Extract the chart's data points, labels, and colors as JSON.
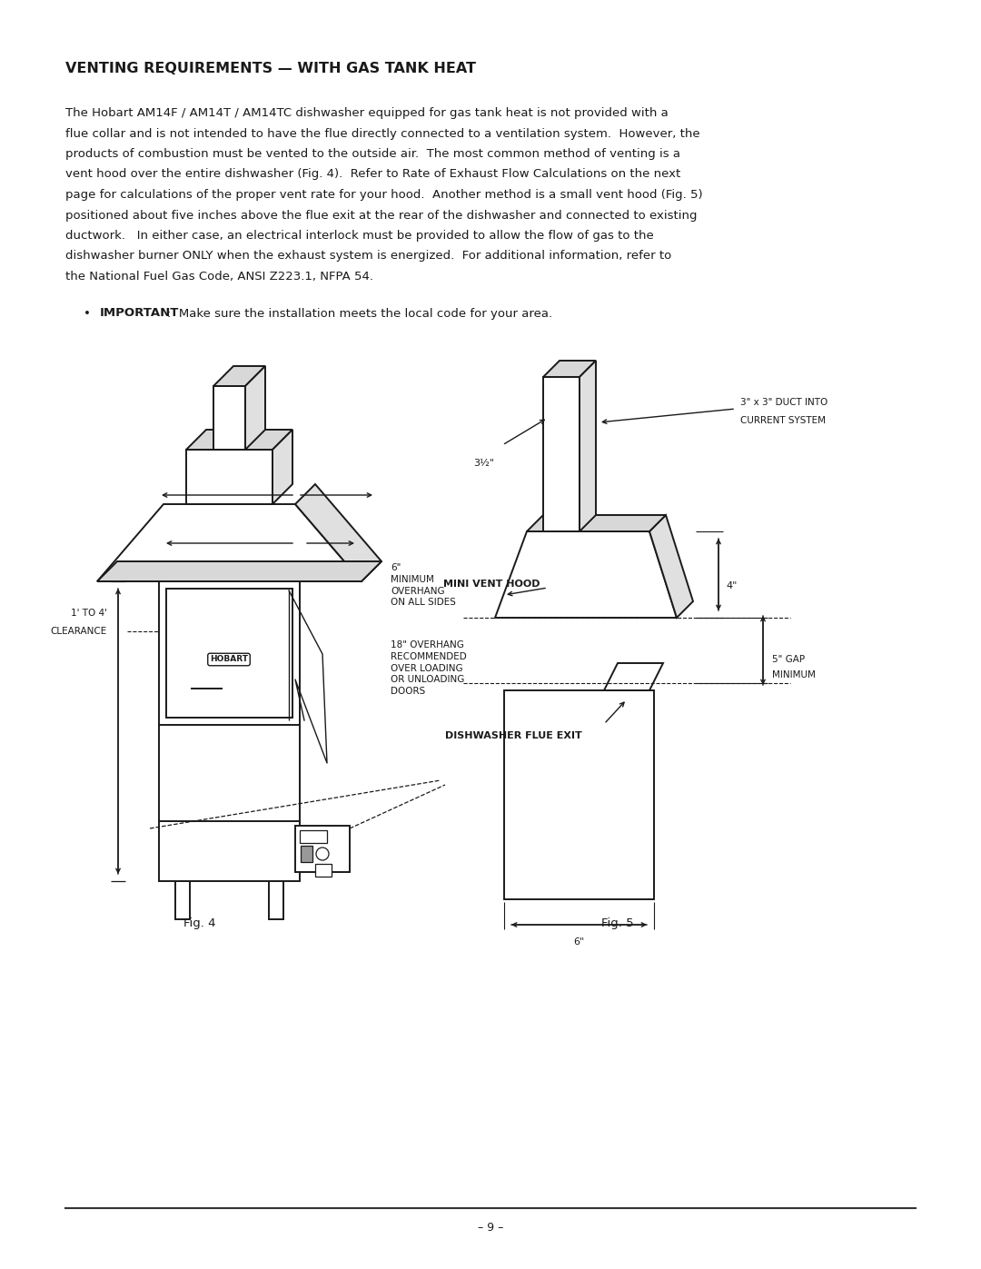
{
  "bg_color": "#ffffff",
  "text_color": "#1a1a1a",
  "title": "VENTING REQUIREMENTS — WITH GAS TANK HEAT",
  "body_line1": "The Hobart AM14F / AM14T / AM14TC dishwasher equipped for gas tank heat is not provided with a",
  "body_line2": "flue collar and is not intended to have the flue directly connected to a ventilation system.  However, the",
  "body_line3": "products of combustion must be vented to the outside air.  The most common method of venting is a",
  "body_line4": "vent hood over the entire dishwasher (Fig. 4).  Refer to Rate of Exhaust Flow Calculations on the next",
  "body_line5": "page for calculations of the proper vent rate for your hood.  Another method is a small vent hood (Fig. 5)",
  "body_line6": "positioned about five inches above the flue exit at the rear of the dishwasher and connected to existing",
  "body_line7": "ductwork.   In either case, an electrical interlock must be provided to allow the flow of gas to the",
  "body_line8": "dishwasher burner ONLY when the exhaust system is energized.  For additional information, refer to",
  "body_line9": "the National Fuel Gas Code, ANSI Z223.1, NFPA 54.",
  "important_label": "IMPORTANT",
  "important_text": ":  Make sure the installation meets the local code for your area.",
  "fig4_label": "Fig. 4",
  "fig5_label": "Fig. 5",
  "page_number": "– 9 –",
  "label_6min": "6\"\nMINIMUM\nOVERHANG\nON ALL SIDES",
  "label_18": "18\" OVERHANG\nRECOMMENDED\nOVER LOADING\nOR UNLOADING\nDOORS",
  "label_clearance1": "1' TO 4'",
  "label_clearance2": "CLEARANCE",
  "label_mini_vent": "MINI VENT HOOD",
  "label_3x3": "3\" x 3\" DUCT INTO",
  "label_current": "CURRENT SYSTEM",
  "label_3half": "3½\"",
  "label_4in": "4\"",
  "label_6in": "6\"",
  "label_5gap1": "5\" GAP",
  "label_5gap2": "MINIMUM",
  "label_flue": "DISHWASHER FLUE EXIT",
  "label_hobart": "HOBART"
}
